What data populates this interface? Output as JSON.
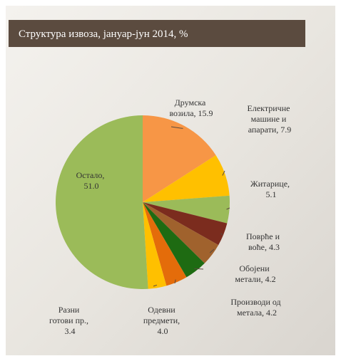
{
  "chart_data": {
    "type": "pie",
    "title": "Структура извоза, јануар-јун 2014, %",
    "values": [
      15.9,
      7.9,
      5.1,
      4.3,
      4.2,
      4.2,
      4.0,
      3.4,
      51.0
    ],
    "value_labels": [
      "Друмска возила, 15.9",
      "Електричне машине и апарати, 7.9",
      "Житарице, 5.1",
      "Поврће и воће, 4.3",
      "Обојени метали, 4.2",
      "Производи од метала, 4.2",
      "Одевни предмети, 4.0",
      "Разни готови пр., 3.4",
      "Остало, 51.0"
    ],
    "colors": [
      "#f79646",
      "#ffc000",
      "#9bbb59",
      "#7b2c1e",
      "#a0622d",
      "#1e6b12",
      "#e46c0a",
      "#ffc000",
      "#9bbb59"
    ]
  }
}
